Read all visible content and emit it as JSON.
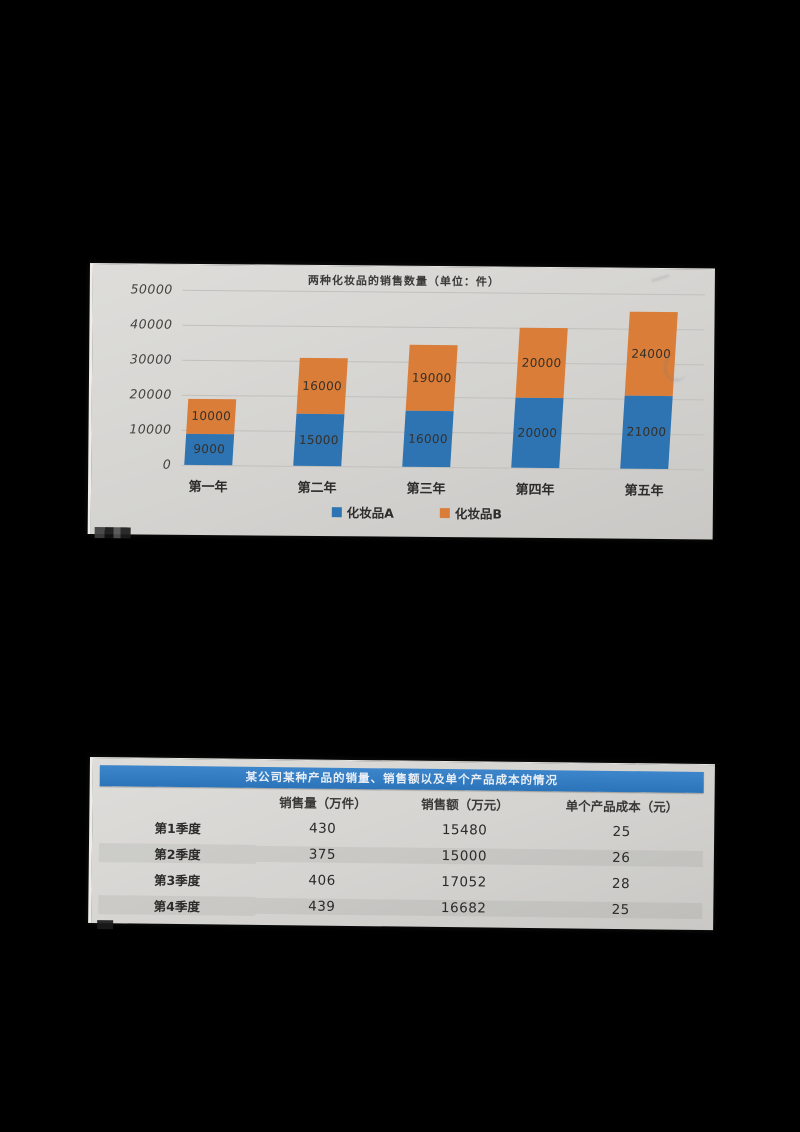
{
  "page": {
    "background_color": "#000000"
  },
  "chart_data": [
    {
      "type": "bar",
      "stacked": true,
      "title": "两种化妆品的销售数量（单位：件）",
      "categories": [
        "第一年",
        "第二年",
        "第三年",
        "第四年",
        "第五年"
      ],
      "series": [
        {
          "name": "化妆品A",
          "color": "#2e73b2",
          "values": [
            9000,
            15000,
            16000,
            20000,
            21000
          ]
        },
        {
          "name": "化妆品B",
          "color": "#da7d38",
          "values": [
            10000,
            16000,
            19000,
            20000,
            24000
          ]
        }
      ],
      "ylim": [
        0,
        50000
      ],
      "yticks": [
        0,
        10000,
        20000,
        30000,
        40000,
        50000
      ],
      "grid": true,
      "bar_labels": true,
      "legend_position": "bottom"
    },
    {
      "type": "table",
      "title": "某公司某种产品的销量、销售额以及单个产品成本的情况",
      "header_color": "#2f7cc4",
      "columns": [
        "",
        "销售量（万件）",
        "销售额（万元）",
        "单个产品成本（元）"
      ],
      "rows": [
        [
          "第1季度",
          "430",
          "15480",
          "25"
        ],
        [
          "第2季度",
          "375",
          "15000",
          "26"
        ],
        [
          "第3季度",
          "406",
          "17052",
          "28"
        ],
        [
          "第4季度",
          "439",
          "16682",
          "25"
        ]
      ]
    }
  ]
}
